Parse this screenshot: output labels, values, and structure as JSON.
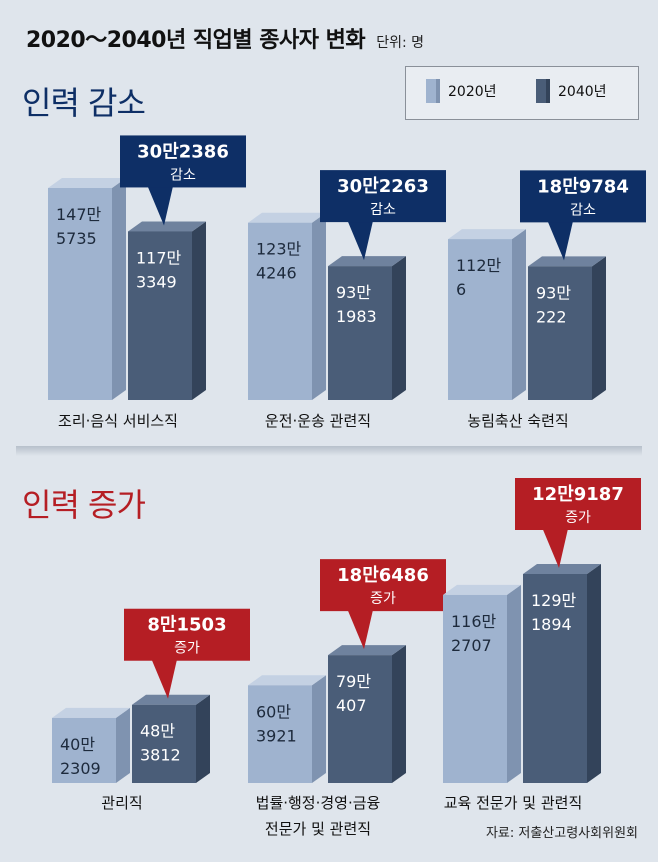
{
  "title": "2020～2040년 직업별 종사자 변화",
  "unit": "단위: 명",
  "legend": {
    "2020": "2020년",
    "2040": "2040년"
  },
  "colors": {
    "bar_2020_front": "#9fb3cf",
    "bar_2020_side": "#7f93b0",
    "bar_2020_top": "#c4d1e3",
    "bar_2040_front": "#4a5d78",
    "bar_2040_side": "#33435a",
    "bar_2040_top": "#6f829e",
    "decrease_box": "#0e2f66",
    "increase_box": "#b51e24",
    "decrease_title": "#0e2f66",
    "increase_title": "#b51e24"
  },
  "source": "자료: 저출산고령사회위원회",
  "chart_data": [
    {
      "type": "bar",
      "title": "인력 감소",
      "series": [
        {
          "name": "2020년",
          "values": [
            1475735,
            1234246,
            1120006
          ]
        },
        {
          "name": "2040년",
          "values": [
            1173349,
            931983,
            930222
          ]
        }
      ],
      "categories": [
        [
          "조리·음식 서비스직"
        ],
        [
          "운전·운송 관련직"
        ],
        [
          "농림축산 숙련직"
        ]
      ],
      "labels_2020": [
        [
          "147만",
          "5735"
        ],
        [
          "123만",
          "4246"
        ],
        [
          "112만",
          "6"
        ]
      ],
      "labels_2040": [
        [
          "117만",
          "3349"
        ],
        [
          "93만",
          "1983"
        ],
        [
          "93만",
          "222"
        ]
      ],
      "changes": [
        {
          "amount": "30만2386",
          "word": "감소"
        },
        {
          "amount": "30만2263",
          "word": "감소"
        },
        {
          "amount": "18만9784",
          "word": "감소"
        }
      ]
    },
    {
      "type": "bar",
      "title": "인력 증가",
      "series": [
        {
          "name": "2020년",
          "values": [
            402309,
            603921,
            1162707
          ]
        },
        {
          "name": "2040년",
          "values": [
            483812,
            790407,
            1291894
          ]
        }
      ],
      "categories": [
        [
          "관리직"
        ],
        [
          "법률·행정·경영·금융",
          "전문가 및 관련직"
        ],
        [
          "교육 전문가 및 관련직"
        ]
      ],
      "labels_2020": [
        [
          "40만",
          "2309"
        ],
        [
          "60만",
          "3921"
        ],
        [
          "116만",
          "2707"
        ]
      ],
      "labels_2040": [
        [
          "48만",
          "3812"
        ],
        [
          "79만",
          "407"
        ],
        [
          "129만",
          "1894"
        ]
      ],
      "changes": [
        {
          "amount": "8만1503",
          "word": "증가"
        },
        {
          "amount": "18만6486",
          "word": "증가"
        },
        {
          "amount": "12만9187",
          "word": "증가"
        }
      ]
    }
  ]
}
